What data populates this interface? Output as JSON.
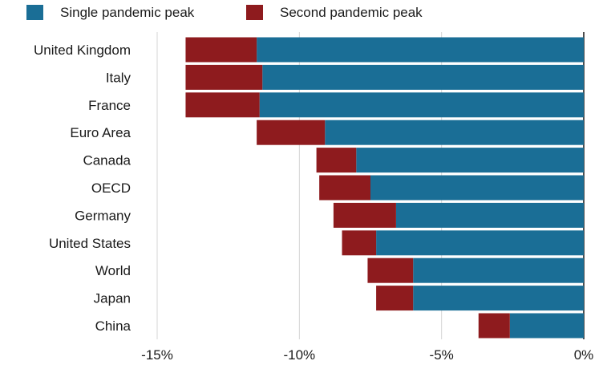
{
  "chart_data": {
    "type": "bar",
    "orientation": "horizontal",
    "stacked": true,
    "categories": [
      "United Kingdom",
      "Italy",
      "France",
      "Euro Area",
      "Canada",
      "OECD",
      "Germany",
      "United States",
      "World",
      "Japan",
      "China"
    ],
    "series": [
      {
        "name": "Single pandemic peak",
        "color": "#1a6e96",
        "values": [
          -11.5,
          -11.3,
          -11.4,
          -9.1,
          -8.0,
          -7.5,
          -6.6,
          -7.3,
          -6.0,
          -6.0,
          -2.6
        ]
      },
      {
        "name": "Second pandemic peak",
        "color": "#8e1b1e",
        "values": [
          -2.5,
          -2.7,
          -2.6,
          -2.4,
          -1.4,
          -1.8,
          -2.2,
          -1.2,
          -1.6,
          -1.3,
          -1.1
        ]
      }
    ],
    "xlim": [
      -15,
      0
    ],
    "xticks": [
      -15,
      -10,
      -5,
      0
    ],
    "xtick_labels": [
      "-15%",
      "-10%",
      "-5%",
      "0%"
    ],
    "grid": "vertical",
    "legend": "top-left"
  }
}
